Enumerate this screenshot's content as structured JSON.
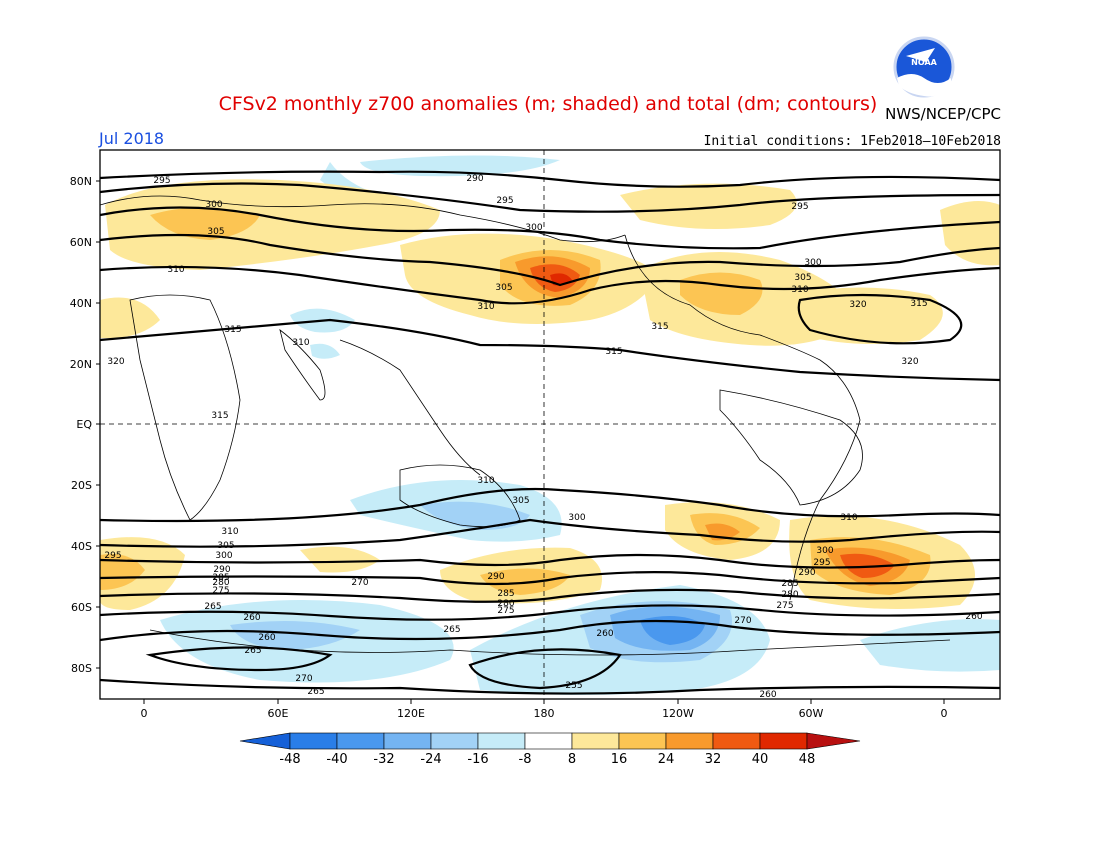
{
  "header": {
    "title": "CFSv2 monthly z700 anomalies (m; shaded) and total (dm; contours)",
    "agency": "NWS/NCEP/CPC",
    "logo_text": "NOAA",
    "valid_month": "Jul 2018",
    "initial_conditions": "Initial conditions: 1Feb2018–10Feb2018"
  },
  "map": {
    "lat_ticks": [
      "80N",
      "60N",
      "40N",
      "20N",
      "EQ",
      "20S",
      "40S",
      "60S",
      "80S"
    ],
    "lon_ticks": [
      "0",
      "60E",
      "120E",
      "180",
      "120W",
      "60W",
      "0"
    ],
    "contour_labels": [
      "295",
      "290",
      "295",
      "295",
      "300",
      "300",
      "305",
      "300",
      "310",
      "305",
      "310",
      "305",
      "310",
      "315",
      "310",
      "315",
      "320",
      "320",
      "315",
      "320",
      "315",
      "315",
      "310",
      "305",
      "300",
      "310",
      "310",
      "305",
      "300",
      "295",
      "290",
      "285",
      "280",
      "275",
      "270",
      "265",
      "260",
      "260",
      "265",
      "270",
      "265",
      "260",
      "255",
      "260",
      "270",
      "260",
      "265",
      "290",
      "285",
      "280",
      "275",
      "300",
      "295",
      "290",
      "285",
      "280",
      "275"
    ]
  },
  "colorbar": {
    "labels": [
      "-48",
      "-40",
      "-32",
      "-24",
      "-16",
      "-8",
      "8",
      "16",
      "24",
      "32",
      "40",
      "48"
    ],
    "colors": [
      "#1560d8",
      "#2a7ee8",
      "#4a98ee",
      "#74b4f2",
      "#a2d2f6",
      "#c6ecf8",
      "#ffffff",
      "#fde89a",
      "#fcc553",
      "#f89a2c",
      "#f05a12",
      "#e02800",
      "#b81010"
    ]
  }
}
